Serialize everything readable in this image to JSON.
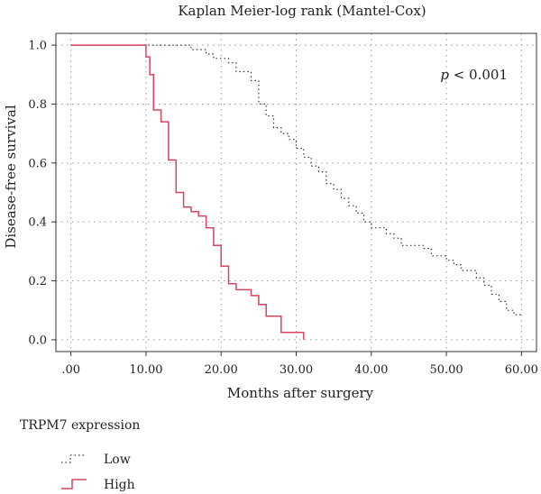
{
  "chart_data": {
    "type": "line",
    "title": "Kaplan Meier-log rank (Mantel-Cox)",
    "xlabel": "Months after surgery",
    "ylabel": "Disease-free survival",
    "xlim": [
      -2,
      62
    ],
    "ylim": [
      -0.04,
      1.04
    ],
    "x_ticks": [
      0,
      10,
      20,
      30,
      40,
      50,
      60
    ],
    "x_tick_labels": [
      ".00",
      "10.00",
      "20.00",
      "30.00",
      "40.00",
      "50.00",
      "60.00"
    ],
    "y_ticks": [
      0,
      0.2,
      0.4,
      0.6,
      0.8,
      1.0
    ],
    "y_tick_labels": [
      "0.0",
      "0.2",
      "0.4",
      "0.6",
      "0.8",
      "1.0"
    ],
    "grid": true,
    "annotation": {
      "italic": "p",
      "text": " < 0.001"
    },
    "legend_title": "TRPM7 expression",
    "legend_placement": "bottom-left",
    "series": [
      {
        "name": "Low",
        "style": "dotted",
        "color": "#333333",
        "step": [
          [
            0,
            1.0
          ],
          [
            15,
            1.0
          ],
          [
            16,
            0.985
          ],
          [
            18,
            0.97
          ],
          [
            19,
            0.955
          ],
          [
            21,
            0.94
          ],
          [
            22,
            0.91
          ],
          [
            24,
            0.88
          ],
          [
            25,
            0.8
          ],
          [
            26,
            0.76
          ],
          [
            27,
            0.72
          ],
          [
            28,
            0.7
          ],
          [
            29,
            0.68
          ],
          [
            30,
            0.65
          ],
          [
            31,
            0.62
          ],
          [
            32,
            0.59
          ],
          [
            33,
            0.57
          ],
          [
            34,
            0.53
          ],
          [
            35,
            0.51
          ],
          [
            36,
            0.48
          ],
          [
            37,
            0.455
          ],
          [
            38,
            0.43
          ],
          [
            39,
            0.4
          ],
          [
            40,
            0.38
          ],
          [
            42,
            0.36
          ],
          [
            43,
            0.345
          ],
          [
            44,
            0.32
          ],
          [
            47,
            0.31
          ],
          [
            48,
            0.285
          ],
          [
            50,
            0.27
          ],
          [
            51,
            0.255
          ],
          [
            52,
            0.235
          ],
          [
            54,
            0.21
          ],
          [
            55,
            0.185
          ],
          [
            56,
            0.155
          ],
          [
            57,
            0.13
          ],
          [
            58,
            0.1
          ],
          [
            59,
            0.085
          ],
          [
            60,
            0.085
          ]
        ]
      },
      {
        "name": "High",
        "style": "solid",
        "color": "#d6455f",
        "step": [
          [
            0,
            1.0
          ],
          [
            9,
            1.0
          ],
          [
            10,
            0.96
          ],
          [
            10.5,
            0.9
          ],
          [
            11,
            0.78
          ],
          [
            12,
            0.74
          ],
          [
            13,
            0.61
          ],
          [
            14,
            0.5
          ],
          [
            15,
            0.45
          ],
          [
            16,
            0.435
          ],
          [
            17,
            0.42
          ],
          [
            18,
            0.38
          ],
          [
            19,
            0.32
          ],
          [
            20,
            0.25
          ],
          [
            21,
            0.19
          ],
          [
            22,
            0.17
          ],
          [
            24,
            0.15
          ],
          [
            25,
            0.12
          ],
          [
            26,
            0.08
          ],
          [
            28,
            0.025
          ],
          [
            31,
            0.0
          ]
        ]
      }
    ]
  }
}
